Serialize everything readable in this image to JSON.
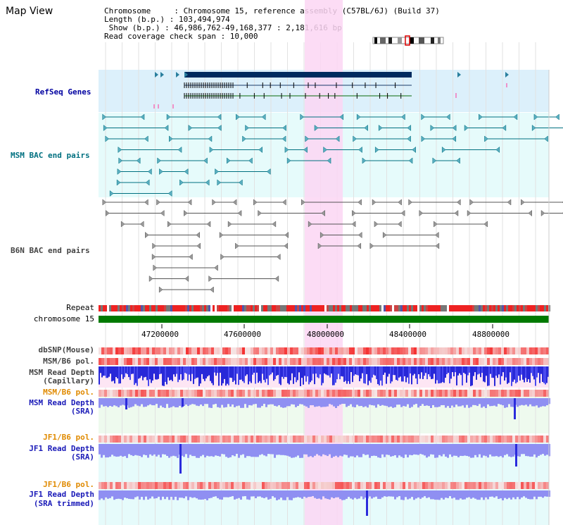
{
  "page": {
    "title": "Map View"
  },
  "info": {
    "chromosome_line": "Chromosome     : Chromosome 15, reference assembly (C57BL/6J) (Build 37)",
    "length_line": "Length (b.p.) : 103,494,974",
    "show_line": " Show (b.p.) : 46,986,762-49,168,377 : 2,181,616 bp",
    "coverage_line": "Read coverage check span : 10,000"
  },
  "tracks": {
    "refseq": "RefSeq Genes",
    "msm_bac": "MSM BAC end pairs",
    "b6n_bac": "B6N BAC end pairs",
    "repeat": "Repeat",
    "chromosome": "chromosome 15",
    "dbsnp": "dbSNP(Mouse)",
    "msm_b6_pol": "MSM/B6 pol.",
    "msm_read_depth": "MSM Read Depth",
    "capillary": "(Capillary)",
    "msm_b6_pol2": "MSM/B6 pol.",
    "msm_read_depth_sra": "MSM Read Depth",
    "sra1": "(SRA)",
    "jf1_b6_pol": "JF1/B6 pol.",
    "jf1_read_depth": "JF1 Read Depth",
    "sra2": "(SRA)",
    "jf1_b6_pol2": "JF1/B6 pol.",
    "jf1_read_depth2": "JF1 Read Depth",
    "sra_trimmed": "(SRA trimmed)"
  },
  "axis": {
    "ticks": [
      "47200000",
      "47600000",
      "48000000",
      "48400000",
      "48800000"
    ]
  },
  "colors": {
    "navy": "#0000a0",
    "teal": "#007080",
    "highlight": "#fbd6f3",
    "chrom_green": "#007a00",
    "depth_blue": "#2b2bdc",
    "depth_light": "#8888f0"
  }
}
